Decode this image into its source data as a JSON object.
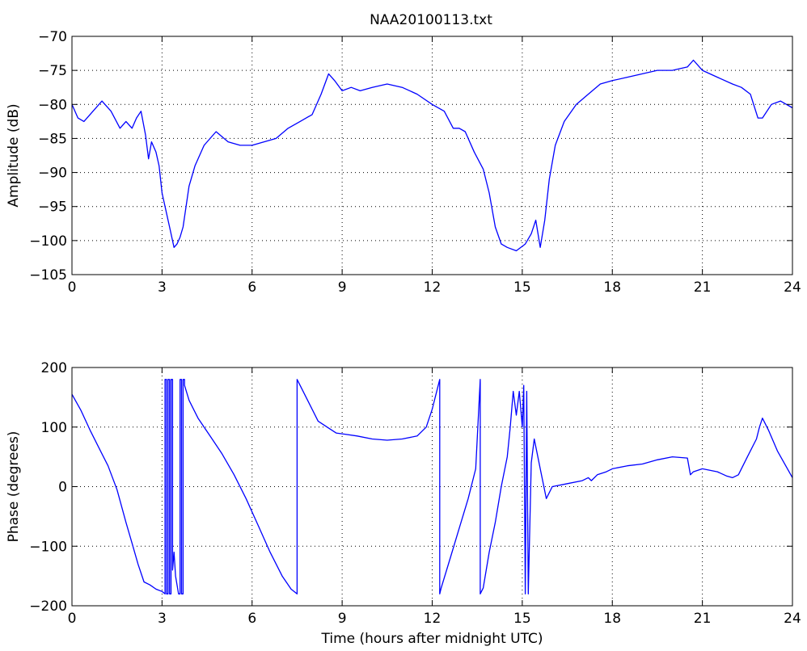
{
  "title": "NAA20100113.txt",
  "chart_data": [
    {
      "type": "line",
      "title": "NAA20100113.txt",
      "xlabel": "",
      "ylabel": "Amplitude (dB)",
      "xlim": [
        0,
        24
      ],
      "ylim": [
        -105,
        -70
      ],
      "xticks": [
        0,
        3,
        6,
        9,
        12,
        15,
        18,
        21,
        24
      ],
      "yticks": [
        -105,
        -100,
        -95,
        -90,
        -85,
        -80,
        -75,
        -70
      ],
      "xtick_labels": [
        "0",
        "3",
        "6",
        "9",
        "12",
        "15",
        "18",
        "21",
        "24"
      ],
      "ytick_labels": [
        "−105",
        "−100",
        "−95",
        "−90",
        "−85",
        "−80",
        "−75",
        "−70"
      ],
      "grid": true,
      "color": "#0000ff",
      "series": [
        {
          "x": [
            0,
            0.2,
            0.4,
            0.7,
            1.0,
            1.3,
            1.6,
            1.8,
            2.0,
            2.15,
            2.3,
            2.45,
            2.55,
            2.65,
            2.8,
            2.9,
            3.0,
            3.1,
            3.25,
            3.4,
            3.5,
            3.6,
            3.7,
            3.9,
            4.1,
            4.4,
            4.8,
            5.2,
            5.6,
            6.0,
            6.4,
            6.8,
            7.2,
            7.6,
            8.0,
            8.3,
            8.55,
            8.75,
            9.0,
            9.3,
            9.6,
            10.0,
            10.5,
            11.0,
            11.5,
            12.0,
            12.4,
            12.7,
            12.9,
            13.1,
            13.4,
            13.7,
            13.9,
            14.1,
            14.3,
            14.5,
            14.8,
            15.1,
            15.3,
            15.45,
            15.6,
            15.75,
            15.9,
            16.1,
            16.4,
            16.8,
            17.2,
            17.6,
            18.0,
            18.5,
            19.0,
            19.5,
            20.0,
            20.5,
            20.7,
            21.0,
            21.5,
            22.0,
            22.3,
            22.6,
            22.85,
            23.0,
            23.3,
            23.6,
            24.0
          ],
          "y": [
            -80,
            -82,
            -82.5,
            -81,
            -79.5,
            -81,
            -83.5,
            -82.5,
            -83.5,
            -82,
            -81,
            -84.5,
            -88,
            -85.5,
            -87,
            -89,
            -93,
            -95,
            -98,
            -101,
            -100.5,
            -99.5,
            -98,
            -92,
            -89,
            -86,
            -84,
            -85.5,
            -86,
            -86,
            -85.5,
            -85,
            -83.5,
            -82.5,
            -81.5,
            -78.5,
            -75.5,
            -76.5,
            -78,
            -77.5,
            -78,
            -77.5,
            -77,
            -77.5,
            -78.5,
            -80,
            -81,
            -83.5,
            -83.5,
            -84,
            -87,
            -89.5,
            -93,
            -98,
            -100.5,
            -101,
            -101.5,
            -100.5,
            -99,
            -97,
            -101,
            -97,
            -91,
            -86,
            -82.5,
            -80,
            -78.5,
            -77,
            -76.5,
            -76,
            -75.5,
            -75,
            -75,
            -74.5,
            -73.5,
            -75,
            -76,
            -77,
            -77.5,
            -78.5,
            -82,
            -82,
            -80,
            -79.5,
            -80.5
          ]
        }
      ]
    },
    {
      "type": "line",
      "title": "",
      "xlabel": "Time (hours after midnight UTC)",
      "ylabel": "Phase (degrees)",
      "xlim": [
        0,
        24
      ],
      "ylim": [
        -200,
        200
      ],
      "xticks": [
        0,
        3,
        6,
        9,
        12,
        15,
        18,
        21,
        24
      ],
      "yticks": [
        -200,
        -100,
        0,
        100,
        200
      ],
      "xtick_labels": [
        "0",
        "3",
        "6",
        "9",
        "12",
        "15",
        "18",
        "21",
        "24"
      ],
      "ytick_labels": [
        "−200",
        "−100",
        "0",
        "100",
        "200"
      ],
      "grid": true,
      "color": "#0000ff",
      "series": [
        {
          "x": [
            0,
            0.3,
            0.6,
            0.9,
            1.2,
            1.5,
            1.8,
            2.0,
            2.2,
            2.4,
            2.6,
            2.8,
            3.0,
            3.1,
            3.1,
            3.15,
            3.15,
            3.2,
            3.2,
            3.25,
            3.25,
            3.3,
            3.3,
            3.35,
            3.35,
            3.4,
            3.45,
            3.55,
            3.6,
            3.6,
            3.65,
            3.65,
            3.7,
            3.7,
            3.75,
            3.75,
            3.9,
            4.2,
            4.6,
            5.0,
            5.4,
            5.8,
            6.2,
            6.6,
            7.0,
            7.3,
            7.5,
            7.5,
            7.6,
            7.9,
            8.2,
            8.5,
            8.8,
            9.1,
            9.5,
            10.0,
            10.5,
            11.0,
            11.5,
            11.8,
            12.0,
            12.25,
            12.25,
            12.3,
            12.6,
            12.9,
            13.2,
            13.45,
            13.6,
            13.6,
            13.7,
            13.9,
            14.1,
            14.3,
            14.5,
            14.6,
            14.7,
            14.8,
            14.9,
            15.0,
            15.05,
            15.1,
            15.15,
            15.2,
            15.3,
            15.4,
            15.6,
            15.8,
            16.0,
            16.5,
            17.0,
            17.2,
            17.3,
            17.5,
            17.8,
            18.0,
            18.5,
            19.0,
            19.5,
            20.0,
            20.5,
            20.6,
            20.7,
            21.0,
            21.5,
            21.8,
            22.0,
            22.2,
            22.5,
            22.8,
            22.9,
            23.0,
            23.2,
            23.5,
            24.0
          ],
          "y": [
            155,
            128,
            95,
            65,
            35,
            -5,
            -60,
            -95,
            -130,
            -160,
            -165,
            -172,
            -176,
            -180,
            180,
            180,
            -180,
            -180,
            180,
            180,
            -180,
            -180,
            180,
            180,
            -140,
            -110,
            -150,
            -180,
            -180,
            180,
            180,
            -180,
            -180,
            180,
            180,
            170,
            145,
            115,
            85,
            55,
            20,
            -20,
            -65,
            -110,
            -150,
            -172,
            -180,
            180,
            170,
            140,
            110,
            100,
            90,
            88,
            85,
            80,
            78,
            80,
            85,
            100,
            130,
            180,
            -180,
            -170,
            -120,
            -70,
            -20,
            30,
            180,
            -180,
            -170,
            -110,
            -60,
            0,
            50,
            100,
            160,
            120,
            160,
            100,
            170,
            -180,
            160,
            -180,
            40,
            80,
            30,
            -20,
            0,
            5,
            10,
            15,
            10,
            20,
            25,
            30,
            35,
            38,
            45,
            50,
            48,
            20,
            25,
            30,
            25,
            18,
            15,
            20,
            50,
            80,
            100,
            115,
            95,
            60,
            15
          ]
        }
      ]
    }
  ]
}
